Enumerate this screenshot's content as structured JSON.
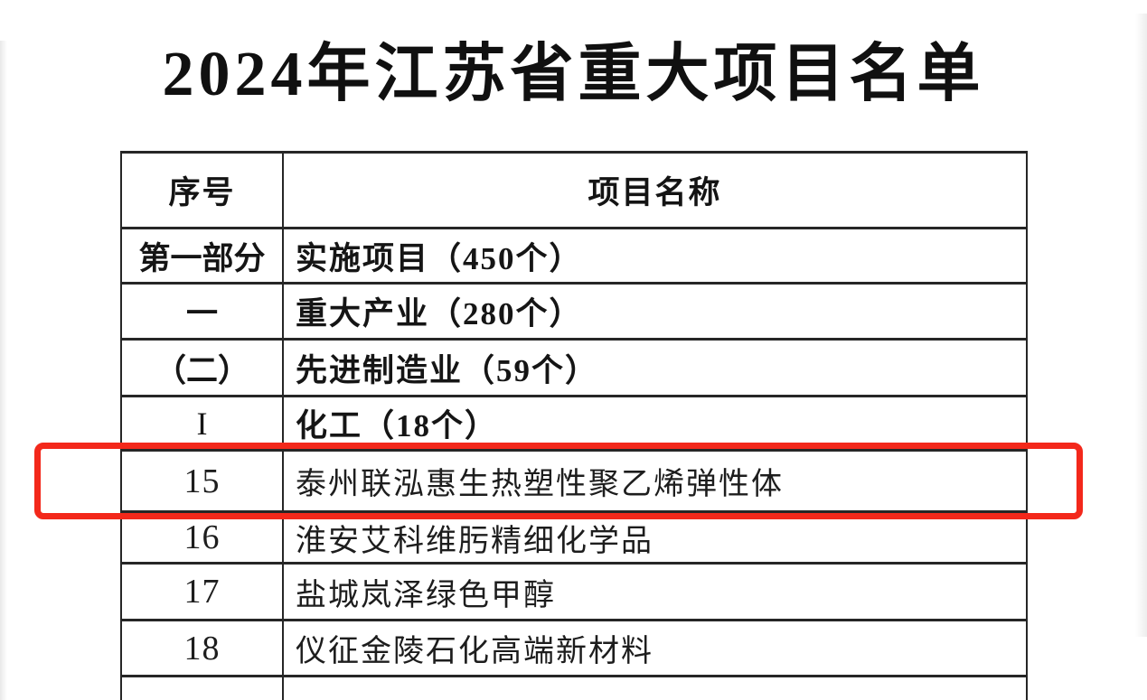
{
  "page_title": "2024年江苏省重大项目名单",
  "table": {
    "headers": {
      "serial": "序号",
      "project_name": "项目名称"
    },
    "rows": [
      {
        "no": "第一部分",
        "name": "实施项目（450个）",
        "emphasis": "bold"
      },
      {
        "no": "一",
        "name": "重大产业（280个）",
        "emphasis": "bold"
      },
      {
        "no": "（二）",
        "name": "先进制造业（59个）",
        "emphasis": "bold"
      },
      {
        "no": "I",
        "name": "化工（18个）",
        "emphasis": "bold",
        "serial_serif": true
      },
      {
        "no": "15",
        "name": "泰州联泓惠生热塑性聚乙烯弹性体",
        "emphasis": "normal",
        "highlighted": true
      },
      {
        "no": "16",
        "name": "淮安艾科维肟精细化学品",
        "emphasis": "normal"
      },
      {
        "no": "17",
        "name": "盐城岚泽绿色甲醇",
        "emphasis": "normal"
      },
      {
        "no": "18",
        "name": "仪征金陵石化高端新材料",
        "emphasis": "normal"
      }
    ]
  },
  "annotation": {
    "type": "highlight-box",
    "highlighted_serial": "15",
    "color": "#f3281b"
  }
}
